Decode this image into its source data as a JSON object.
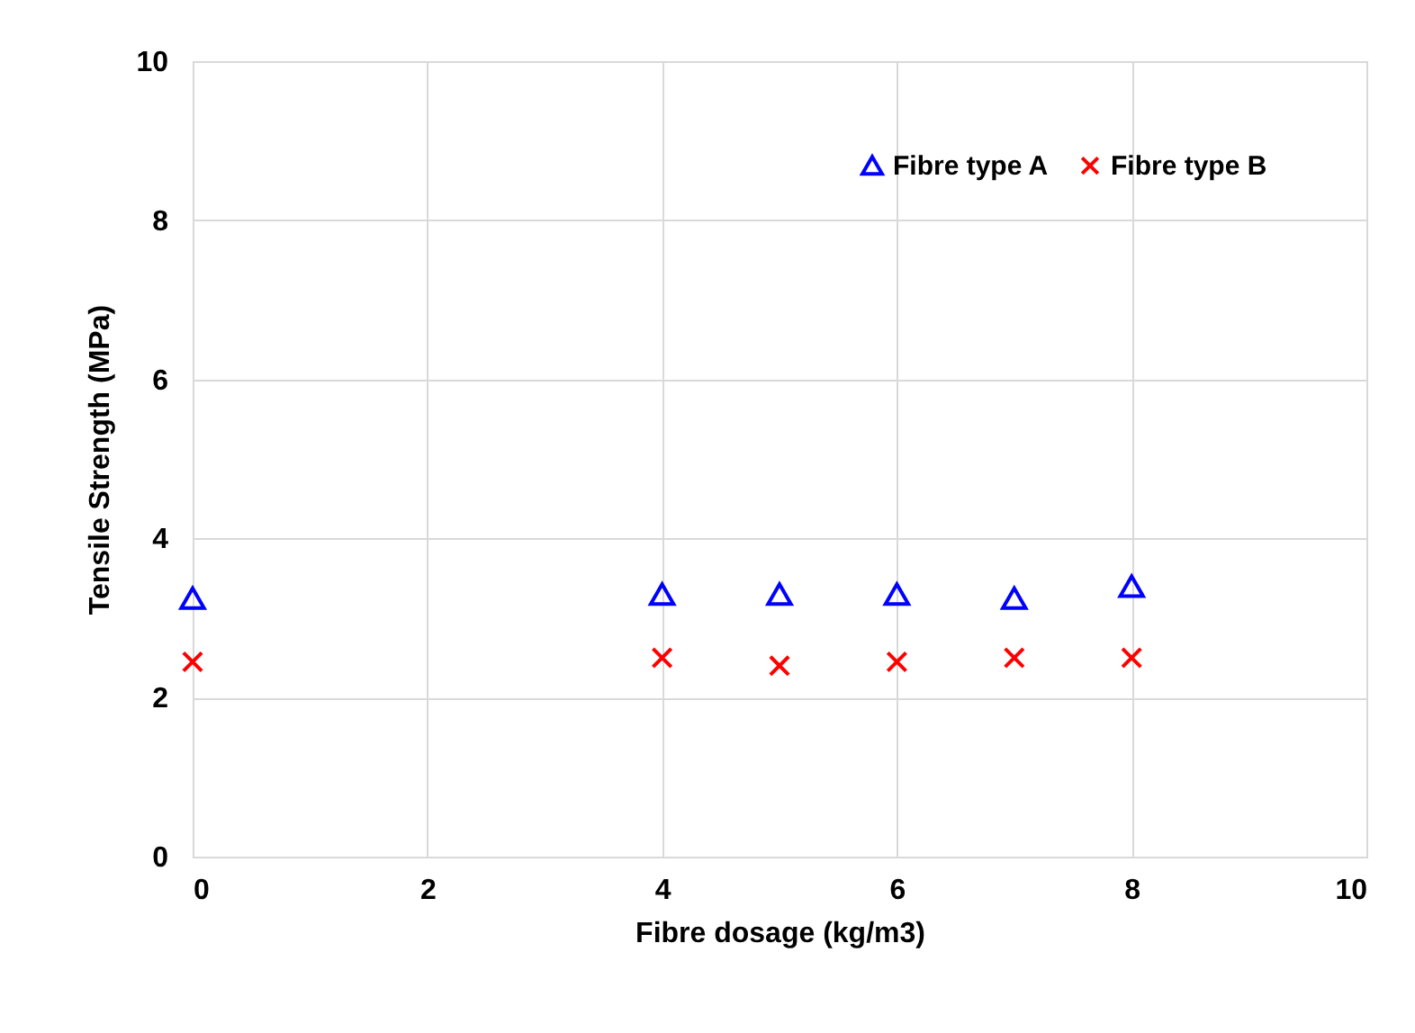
{
  "chart_data": {
    "type": "scatter",
    "xlabel": "Fibre dosage (kg/m3)",
    "ylabel": "Tensile Strength (MPa)",
    "x": [
      0,
      4,
      5,
      6,
      7,
      8
    ],
    "series": [
      {
        "name": "Fibre type A",
        "color": "#0000ff",
        "marker": "triangle",
        "values": [
          3.25,
          3.3,
          3.3,
          3.3,
          3.25,
          3.4
        ]
      },
      {
        "name": "Fibre type B",
        "color": "#ff0000",
        "marker": "cross",
        "values": [
          2.45,
          2.5,
          2.4,
          2.45,
          2.5,
          2.5
        ]
      }
    ],
    "xlim": [
      0,
      10
    ],
    "xticks": [
      0,
      2,
      4,
      6,
      8,
      10
    ],
    "ylim": [
      0,
      10
    ],
    "yticks": [
      0,
      2,
      4,
      6,
      8,
      10
    ],
    "grid": true,
    "legend": "top right"
  }
}
